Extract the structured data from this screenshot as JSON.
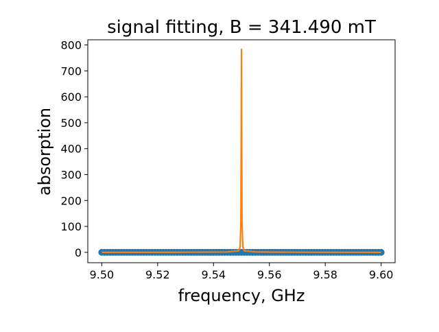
{
  "chart_data": {
    "type": "scatter",
    "title": "signal fitting, B = 341.490 mT",
    "xlabel": "frequency, GHz",
    "ylabel": "absorption",
    "xlim": [
      9.495,
      9.605
    ],
    "ylim": [
      -40,
      820
    ],
    "xticks": [
      9.5,
      9.52,
      9.54,
      9.56,
      9.58,
      9.6
    ],
    "xtick_labels": [
      "9.50",
      "9.52",
      "9.54",
      "9.56",
      "9.58",
      "9.60"
    ],
    "yticks": [
      0,
      100,
      200,
      300,
      400,
      500,
      600,
      700,
      800
    ],
    "ytick_labels": [
      "0",
      "100",
      "200",
      "300",
      "400",
      "500",
      "600",
      "700",
      "800"
    ],
    "grid": false,
    "series": [
      {
        "kind": "scatter",
        "color": "#1f77b4",
        "x_range": [
          9.5,
          9.6
        ],
        "n_points": 101,
        "y_value": 0
      },
      {
        "kind": "line",
        "color": "#ff7f0e",
        "x": [
          9.5,
          9.53,
          9.545,
          9.549,
          9.5495,
          9.5498,
          9.5499,
          9.55,
          9.5501,
          9.5502,
          9.5505,
          9.551,
          9.555,
          9.57,
          9.6
        ],
        "y": [
          0,
          0.5,
          1.5,
          6,
          20,
          120,
          400,
          783,
          400,
          120,
          20,
          6,
          1.5,
          0.5,
          0
        ]
      }
    ]
  }
}
